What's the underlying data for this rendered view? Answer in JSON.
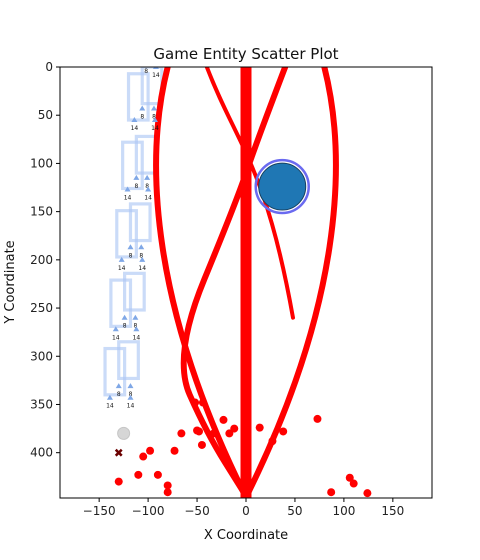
{
  "chart_data": {
    "type": "scatter",
    "title": "Game Entity Scatter Plot",
    "xlabel": "X Coordinate",
    "ylabel": "Y Coordinate",
    "xlim": [
      -190,
      190
    ],
    "ylim": [
      447,
      0
    ],
    "y_inverted": true,
    "grid": false,
    "legend": "none",
    "x_ticks": [
      -150,
      -100,
      -50,
      0,
      50,
      100,
      150
    ],
    "y_ticks": [
      0,
      50,
      100,
      150,
      200,
      250,
      300,
      350,
      400
    ],
    "colors": {
      "red": "#ff0000",
      "blue_fill": "#1f77b4",
      "blue_ring": "#6a6af0",
      "frame_blue": "#aec7f4",
      "small_blue": "#7fa7e6",
      "dark_marker": "#6b0000",
      "gray_marker": "#cccccc"
    },
    "series": [
      {
        "kind": "points",
        "color": "red",
        "points": [
          [
            -130,
            430
          ],
          [
            -110,
            423
          ],
          [
            -105,
            404
          ],
          [
            -98,
            398
          ],
          [
            -90,
            423
          ],
          [
            -80,
            434
          ],
          [
            -80,
            441
          ],
          [
            -73,
            398
          ],
          [
            -66,
            380
          ],
          [
            -52,
            348
          ],
          [
            -50,
            377
          ],
          [
            -48,
            378
          ],
          [
            -45,
            392
          ],
          [
            -44,
            348
          ],
          [
            -33,
            380
          ],
          [
            -23,
            366
          ],
          [
            -17,
            380
          ],
          [
            -12,
            375
          ],
          [
            14,
            374
          ],
          [
            27,
            388
          ],
          [
            38,
            378
          ],
          [
            73,
            365
          ],
          [
            87,
            441
          ],
          [
            106,
            426
          ],
          [
            110,
            432
          ],
          [
            124,
            442
          ]
        ]
      },
      {
        "kind": "red_curve",
        "color": "red",
        "curves": [
          [
            [
              -80,
              0
            ],
            [
              -105,
              100
            ],
            [
              -95,
              250
            ],
            [
              -3,
              440
            ]
          ],
          [
            [
              80,
              0
            ],
            [
              105,
              100
            ],
            [
              95,
              250
            ],
            [
              3,
              440
            ]
          ],
          [
            [
              -40,
              0
            ],
            [
              -10,
              80
            ],
            [
              20,
              100
            ],
            [
              48,
              260
            ]
          ],
          [
            [
              40,
              0
            ],
            [
              10,
              80
            ],
            [
              -10,
              140
            ],
            [
              -75,
              300
            ],
            [
              -40,
              380
            ],
            [
              -3,
              440
            ]
          ]
        ],
        "bar_x": 0,
        "bar_range": [
          0,
          447
        ]
      },
      {
        "kind": "circle",
        "x": 37,
        "y": 124,
        "radius_units": 24,
        "color": "blue_fill"
      },
      {
        "kind": "frames",
        "color": "frame_blue",
        "rects": [
          [
            -120,
            7,
            20,
            48
          ],
          [
            -106,
            0,
            20,
            38
          ],
          [
            -126,
            78,
            20,
            48
          ],
          [
            -112,
            72,
            20,
            38
          ],
          [
            -132,
            149,
            20,
            48
          ],
          [
            -118,
            142,
            20,
            38
          ],
          [
            -138,
            221,
            20,
            48
          ],
          [
            -124,
            214,
            20,
            38
          ],
          [
            -144,
            292,
            20,
            48
          ],
          [
            -130,
            285,
            20,
            38
          ]
        ]
      },
      {
        "kind": "small_markers",
        "color": "small_blue",
        "points": [
          [
            -106,
            43,
            "8"
          ],
          [
            -94,
            43,
            "8"
          ],
          [
            -114,
            55,
            "14"
          ],
          [
            -93,
            55,
            "14"
          ],
          [
            -92,
            0,
            "14"
          ],
          [
            -102,
            -4,
            "8"
          ],
          [
            -112,
            115,
            "8"
          ],
          [
            -101,
            115,
            "8"
          ],
          [
            -121,
            127,
            "14"
          ],
          [
            -100,
            127,
            "14"
          ],
          [
            -118,
            187,
            "8"
          ],
          [
            -107,
            187,
            "8"
          ],
          [
            -127,
            200,
            "14"
          ],
          [
            -106,
            200,
            "14"
          ],
          [
            -124,
            260,
            "8"
          ],
          [
            -113,
            260,
            "8"
          ],
          [
            -133,
            272,
            "14"
          ],
          [
            -112,
            272,
            "14"
          ],
          [
            -130,
            331,
            "8"
          ],
          [
            -118,
            331,
            "8"
          ],
          [
            -139,
            343,
            "14"
          ],
          [
            -118,
            343,
            "14"
          ]
        ]
      },
      {
        "kind": "special_markers",
        "items": [
          [
            -125,
            380,
            "gray_marker"
          ],
          [
            -130,
            400,
            "dark_marker"
          ],
          [
            0,
            440,
            "red"
          ]
        ]
      }
    ]
  }
}
